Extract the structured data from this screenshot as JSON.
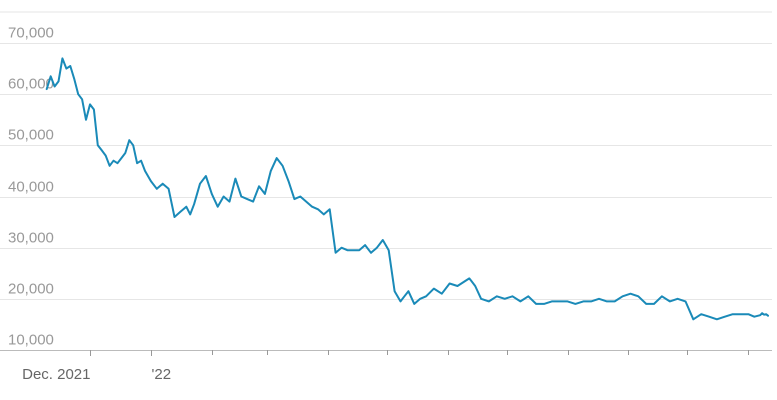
{
  "chart_data": {
    "type": "line",
    "title": "",
    "xlabel": "",
    "ylabel": "",
    "ylim": [
      10000,
      70000
    ],
    "yticks": [
      10000,
      20000,
      30000,
      40000,
      50000,
      60000,
      70000
    ],
    "ytick_labels": [
      "10,000",
      "20,000",
      "30,000",
      "40,000",
      "50,000",
      "60,000",
      "70,000"
    ],
    "xlim": [
      "2021-11-01",
      "2022-11-12"
    ],
    "x_tick_labels": [
      {
        "x": "2021-12-01",
        "label": "Dec. 2021"
      },
      {
        "x": "2022-01-01",
        "label": "'22"
      }
    ],
    "minor_ticks": [
      "2022-02-01",
      "2022-03-01",
      "2022-04-01",
      "2022-05-01",
      "2022-06-01",
      "2022-07-01",
      "2022-08-01",
      "2022-09-01",
      "2022-10-01",
      "2022-11-01"
    ],
    "grid": true,
    "legend": "none",
    "line_color": "#1a8ab8",
    "series": [
      {
        "x": [
          "2021-11-09",
          "2021-11-11",
          "2021-11-13",
          "2021-11-15",
          "2021-11-17",
          "2021-11-19",
          "2021-11-21",
          "2021-11-23",
          "2021-11-25",
          "2021-11-27",
          "2021-11-29",
          "2021-12-01",
          "2021-12-03",
          "2021-12-05",
          "2021-12-07",
          "2021-12-09",
          "2021-12-11",
          "2021-12-13",
          "2021-12-15",
          "2021-12-17",
          "2021-12-19",
          "2021-12-21",
          "2021-12-23",
          "2021-12-25",
          "2021-12-27",
          "2021-12-29",
          "2022-01-01",
          "2022-01-04",
          "2022-01-07",
          "2022-01-10",
          "2022-01-13",
          "2022-01-16",
          "2022-01-19",
          "2022-01-21",
          "2022-01-23",
          "2022-01-26",
          "2022-01-29",
          "2022-02-01",
          "2022-02-04",
          "2022-02-07",
          "2022-02-10",
          "2022-02-13",
          "2022-02-16",
          "2022-02-19",
          "2022-02-22",
          "2022-02-25",
          "2022-02-28",
          "2022-03-03",
          "2022-03-06",
          "2022-03-09",
          "2022-03-12",
          "2022-03-15",
          "2022-03-18",
          "2022-03-21",
          "2022-03-24",
          "2022-03-27",
          "2022-03-30",
          "2022-04-02",
          "2022-04-05",
          "2022-04-08",
          "2022-04-11",
          "2022-04-14",
          "2022-04-17",
          "2022-04-20",
          "2022-04-23",
          "2022-04-26",
          "2022-04-29",
          "2022-05-02",
          "2022-05-05",
          "2022-05-08",
          "2022-05-10",
          "2022-05-12",
          "2022-05-15",
          "2022-05-18",
          "2022-05-21",
          "2022-05-25",
          "2022-05-29",
          "2022-06-02",
          "2022-06-06",
          "2022-06-10",
          "2022-06-12",
          "2022-06-13",
          "2022-06-15",
          "2022-06-18",
          "2022-06-22",
          "2022-06-26",
          "2022-06-30",
          "2022-07-04",
          "2022-07-08",
          "2022-07-12",
          "2022-07-16",
          "2022-07-20",
          "2022-07-24",
          "2022-07-28",
          "2022-08-01",
          "2022-08-05",
          "2022-08-09",
          "2022-08-13",
          "2022-08-17",
          "2022-08-21",
          "2022-08-25",
          "2022-08-29",
          "2022-09-02",
          "2022-09-06",
          "2022-09-10",
          "2022-09-14",
          "2022-09-18",
          "2022-09-22",
          "2022-09-26",
          "2022-09-30",
          "2022-10-04",
          "2022-10-08",
          "2022-10-12",
          "2022-10-16",
          "2022-10-20",
          "2022-10-24",
          "2022-10-28",
          "2022-11-01",
          "2022-11-04",
          "2022-11-07",
          "2022-11-08",
          "2022-11-09",
          "2022-11-10",
          "2022-11-11"
        ],
        "values": [
          61000,
          63500,
          61500,
          62500,
          67000,
          65000,
          65500,
          63000,
          60000,
          59000,
          55000,
          58000,
          57000,
          50000,
          49000,
          48000,
          46000,
          47000,
          46500,
          47500,
          48500,
          51000,
          50000,
          46500,
          47000,
          45000,
          43000,
          41500,
          42500,
          41500,
          36000,
          37000,
          38000,
          36500,
          38500,
          42500,
          44000,
          40500,
          38000,
          40000,
          39000,
          43500,
          40000,
          39500,
          39000,
          42000,
          40500,
          45000,
          47500,
          46000,
          43000,
          39500,
          40000,
          39000,
          38000,
          37500,
          36500,
          37500,
          29000,
          30000,
          29500,
          29500,
          29500,
          30500,
          29000,
          30000,
          31500,
          29500,
          21500,
          19500,
          20500,
          21500,
          19000,
          20000,
          20500,
          22000,
          21000,
          23000,
          22500,
          23500,
          24000,
          23500,
          22500,
          20000,
          19500,
          20500,
          20000,
          20500,
          19500,
          20500,
          19000,
          19000,
          19500,
          19500,
          19500,
          19000,
          19500,
          19500,
          20000,
          19500,
          19500,
          20500,
          21000,
          20500,
          19000,
          19000,
          20500,
          19500,
          20000,
          19500,
          16000,
          17000,
          16500,
          16000,
          16500,
          17000,
          17000,
          17000,
          16500,
          16800,
          17200,
          16900,
          17000,
          16700
        ]
      }
    ]
  }
}
